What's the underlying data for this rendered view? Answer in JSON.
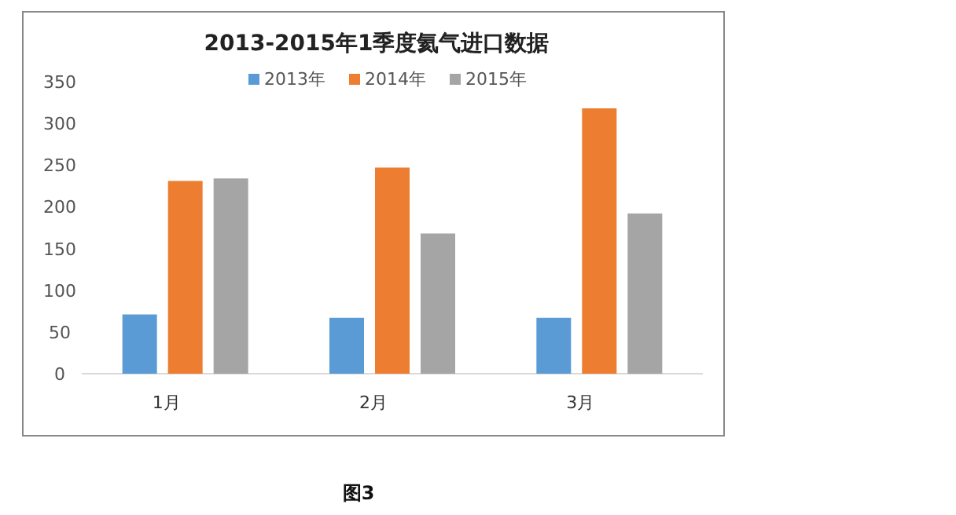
{
  "chart_data": {
    "type": "bar",
    "title": "2013-2015年1季度氦气进口数据",
    "categories": [
      "1月",
      "2月",
      "3月"
    ],
    "series": [
      {
        "name": "2013年",
        "color": "#5b9bd5",
        "values": [
          71,
          67,
          67
        ]
      },
      {
        "name": "2014年",
        "color": "#ed7d31",
        "values": [
          231,
          247,
          318
        ]
      },
      {
        "name": "2015年",
        "color": "#a5a5a5",
        "values": [
          234,
          168,
          192
        ]
      }
    ],
    "ylim": [
      0,
      350
    ],
    "yticks": [
      0,
      50,
      100,
      150,
      200,
      250,
      300,
      350
    ],
    "grid": false,
    "legend": "top",
    "annotations": [
      "图3"
    ]
  }
}
